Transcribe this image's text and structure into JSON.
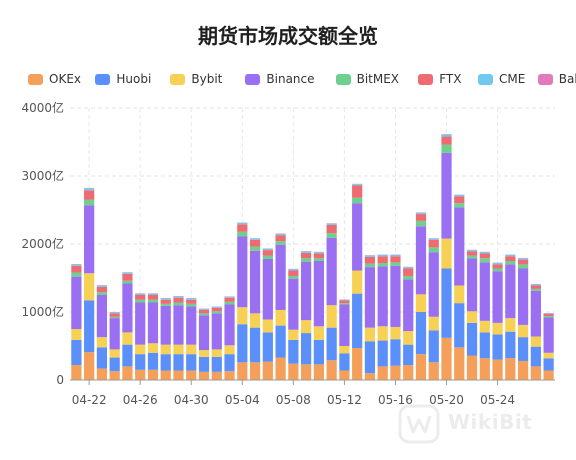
{
  "chart_data": {
    "type": "bar",
    "stacked": true,
    "title": "期货市场成交额全览",
    "xlabel": "",
    "ylabel": "",
    "ylim": [
      0,
      4000
    ],
    "yticks": [
      "0",
      "1000亿",
      "2000亿",
      "3000亿",
      "4000亿"
    ],
    "ytick_values": [
      0,
      1000,
      2000,
      3000,
      4000
    ],
    "xtick_labels": [
      "04-22",
      "04-26",
      "04-30",
      "05-04",
      "05-08",
      "05-12",
      "05-16",
      "05-20",
      "05-24"
    ],
    "xtick_indices": [
      1,
      5,
      9,
      13,
      17,
      21,
      25,
      29,
      33
    ],
    "grid": true,
    "legend_position": "top",
    "categories": [
      "04-21",
      "04-22",
      "04-23",
      "04-24",
      "04-25",
      "04-26",
      "04-27",
      "04-28",
      "04-29",
      "04-30",
      "05-01",
      "05-02",
      "05-03",
      "05-04",
      "05-05",
      "05-06",
      "05-07",
      "05-08",
      "05-09",
      "05-10",
      "05-11",
      "05-12",
      "05-13",
      "05-14",
      "05-15",
      "05-16",
      "05-17",
      "05-18",
      "05-19",
      "05-20",
      "05-21",
      "05-22",
      "05-23",
      "05-24",
      "05-25",
      "05-26",
      "05-27",
      "05-28"
    ],
    "series": [
      {
        "name": "OKEx",
        "color": "#f5a05a",
        "values": [
          220,
          410,
          170,
          130,
          200,
          150,
          150,
          140,
          140,
          140,
          120,
          120,
          130,
          260,
          260,
          270,
          330,
          240,
          230,
          230,
          290,
          140,
          470,
          100,
          200,
          210,
          220,
          380,
          260,
          620,
          480,
          360,
          320,
          300,
          320,
          280,
          200,
          140
        ]
      },
      {
        "name": "Huobi",
        "color": "#5b8ff9",
        "values": [
          370,
          760,
          310,
          200,
          320,
          230,
          250,
          240,
          240,
          240,
          220,
          220,
          250,
          560,
          510,
          430,
          470,
          350,
          460,
          360,
          480,
          250,
          800,
          470,
          380,
          390,
          300,
          620,
          470,
          1020,
          650,
          480,
          380,
          370,
          390,
          350,
          290,
          180
        ]
      },
      {
        "name": "Bybit",
        "color": "#f6d155",
        "values": [
          160,
          400,
          150,
          120,
          180,
          140,
          140,
          140,
          140,
          140,
          100,
          110,
          130,
          250,
          210,
          190,
          230,
          150,
          190,
          200,
          330,
          110,
          340,
          200,
          210,
          180,
          200,
          260,
          200,
          440,
          260,
          170,
          170,
          170,
          200,
          180,
          150,
          80
        ]
      },
      {
        "name": "Binance",
        "color": "#9b6ff2",
        "values": [
          770,
          1000,
          620,
          460,
          720,
          620,
          600,
          570,
          580,
          560,
          510,
          530,
          600,
          1040,
          920,
          890,
          960,
          750,
          860,
          960,
          990,
          610,
          990,
          890,
          880,
          900,
          760,
          1000,
          950,
          1260,
          1150,
          780,
          860,
          760,
          790,
          830,
          670,
          520
        ]
      },
      {
        "name": "BitMEX",
        "color": "#6dd08e",
        "values": [
          60,
          80,
          40,
          20,
          40,
          40,
          40,
          30,
          40,
          40,
          30,
          30,
          40,
          70,
          60,
          50,
          50,
          40,
          50,
          40,
          70,
          20,
          80,
          50,
          50,
          50,
          50,
          80,
          70,
          120,
          60,
          40,
          60,
          40,
          50,
          60,
          30,
          20
        ]
      },
      {
        "name": "FTX",
        "color": "#ee6b72",
        "values": [
          100,
          140,
          80,
          50,
          100,
          70,
          70,
          60,
          70,
          60,
          50,
          50,
          60,
          110,
          100,
          80,
          90,
          80,
          80,
          70,
          120,
          40,
          180,
          100,
          100,
          90,
          110,
          100,
          110,
          120,
          100,
          60,
          70,
          60,
          70,
          70,
          50,
          30
        ]
      },
      {
        "name": "CME",
        "color": "#72c9f0",
        "values": [
          20,
          30,
          20,
          15,
          20,
          20,
          20,
          20,
          20,
          20,
          15,
          15,
          15,
          20,
          20,
          20,
          20,
          20,
          20,
          20,
          20,
          10,
          20,
          20,
          20,
          20,
          20,
          20,
          20,
          30,
          20,
          20,
          20,
          20,
          20,
          20,
          15,
          10
        ]
      },
      {
        "name": "Bakkt",
        "color": "#e07ab8",
        "values": [
          5,
          5,
          5,
          5,
          5,
          5,
          5,
          5,
          5,
          5,
          5,
          5,
          5,
          5,
          5,
          5,
          5,
          5,
          5,
          5,
          5,
          5,
          5,
          5,
          5,
          5,
          5,
          5,
          5,
          5,
          5,
          5,
          5,
          5,
          5,
          5,
          5,
          5
        ]
      }
    ]
  },
  "watermark": {
    "text": "WikiBit"
  }
}
